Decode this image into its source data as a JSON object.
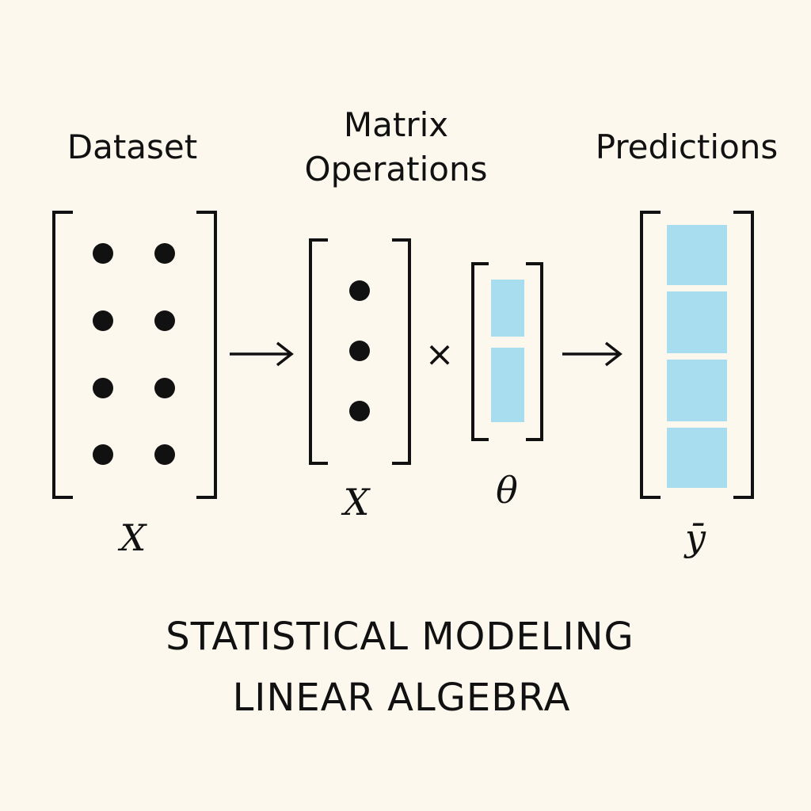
{
  "diagram": {
    "dataset": {
      "heading": "Dataset",
      "symbol": "X"
    },
    "operations": {
      "heading": [
        "Matrix",
        "Operations"
      ],
      "matrix_symbol": "X",
      "operator": "×",
      "vector_symbol": "θ"
    },
    "predictions": {
      "heading": "Predictions",
      "symbol": "ȳ"
    },
    "footer": {
      "title": "STATISTICAL MODELING",
      "subtitle": "LINEAR ALGEBRA"
    }
  }
}
